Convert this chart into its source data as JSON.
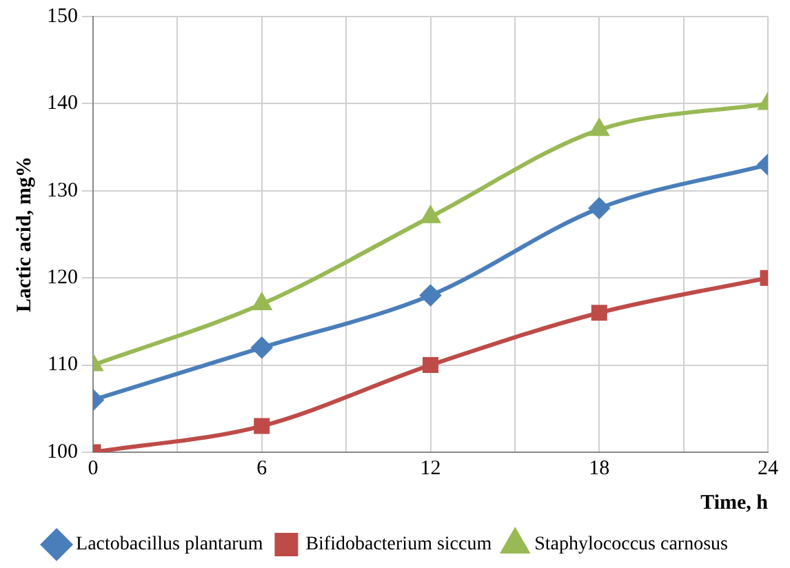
{
  "chart_data": {
    "type": "line",
    "xlabel": "Time, h",
    "ylabel": "Lactic acid, mg%",
    "x": [
      0,
      6,
      12,
      18,
      24
    ],
    "series": [
      {
        "name": "Lactobacillus plantarum",
        "color": "#4a7ebb",
        "marker": "diamond",
        "values": [
          106,
          112,
          118,
          128,
          133
        ]
      },
      {
        "name": "Bifidobacterium siccum",
        "color": "#be4b48",
        "marker": "square",
        "values": [
          100,
          103,
          110,
          116,
          120
        ]
      },
      {
        "name": "Staphylococcus carnosus",
        "color": "#98b954",
        "marker": "triangle",
        "values": [
          110,
          117,
          127,
          137,
          140
        ]
      }
    ],
    "xlim": [
      0,
      24
    ],
    "xticks": [
      0,
      {
        "value": 3,
        "label": null
      },
      6,
      {
        "value": 9,
        "label": null
      },
      12,
      {
        "value": 15,
        "label": null
      },
      18,
      {
        "value": 21,
        "label": null
      },
      24
    ],
    "ylim": [
      100,
      150
    ],
    "yticks": [
      100,
      110,
      120,
      130,
      140,
      150
    ],
    "grid": true,
    "legend": "bottom"
  }
}
